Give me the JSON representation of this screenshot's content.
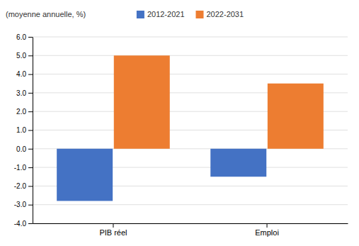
{
  "chart_data": {
    "type": "bar",
    "ylabel": "(moyenne annuelle, %)",
    "categories": [
      "PIB réel",
      "Emploi"
    ],
    "series": [
      {
        "name": "2012-2021",
        "color": "#4472C4",
        "values": [
          -2.8,
          -1.5
        ]
      },
      {
        "name": "2022-2031",
        "color": "#ED7D31",
        "values": [
          5.0,
          3.5
        ]
      }
    ],
    "ylim": [
      -4.0,
      6.0
    ],
    "yticks": [
      {
        "value": -4.0,
        "label": "-4.0"
      },
      {
        "value": -3.0,
        "label": "-3.0"
      },
      {
        "value": -2.0,
        "label": "-2.0"
      },
      {
        "value": -1.0,
        "label": "-1.0"
      },
      {
        "value": 0.0,
        "label": "0.0"
      },
      {
        "value": 1.0,
        "label": "1.0"
      },
      {
        "value": 2.0,
        "label": "2.0"
      },
      {
        "value": 3.0,
        "label": "3.0"
      },
      {
        "value": 4.0,
        "label": "4.0"
      },
      {
        "value": 5.0,
        "label": "5.0"
      },
      {
        "value": 6.0,
        "label": "6.0"
      }
    ],
    "grid": true,
    "legend": "top"
  }
}
